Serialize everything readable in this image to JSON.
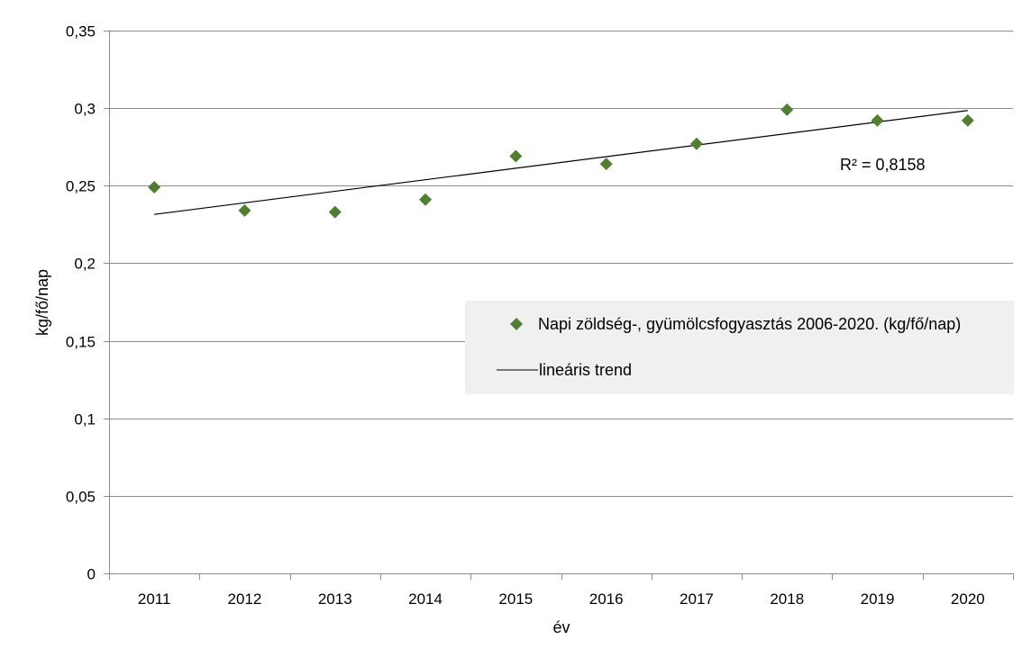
{
  "chart_data": {
    "type": "scatter",
    "title": "",
    "xlabel": "év",
    "ylabel": "kg/fő/nap",
    "x": [
      "2011",
      "2012",
      "2013",
      "2014",
      "2015",
      "2016",
      "2017",
      "2018",
      "2019",
      "2020"
    ],
    "series": [
      {
        "name": "Napi zöldség-, gyümölcsfogyasztás 2006-2020. (kg/fő/nap)",
        "values": [
          0.249,
          0.234,
          0.233,
          0.241,
          0.269,
          0.264,
          0.277,
          0.299,
          0.292,
          0.292
        ],
        "color": "#4f7f2f",
        "marker": "diamond"
      }
    ],
    "trendline": {
      "name": "lineáris trend",
      "type": "linear",
      "start": 0.2315,
      "end": 0.2985,
      "color": "#000000",
      "r2_label": "R² = 0,8158"
    },
    "yticks": [
      "0",
      "0,05",
      "0,1",
      "0,15",
      "0,2",
      "0,25",
      "0,3",
      "0,35"
    ],
    "ylim": [
      0,
      0.35
    ],
    "grid": true,
    "legend": {
      "placement": "right-middle",
      "background": "#f0f0f0"
    }
  }
}
